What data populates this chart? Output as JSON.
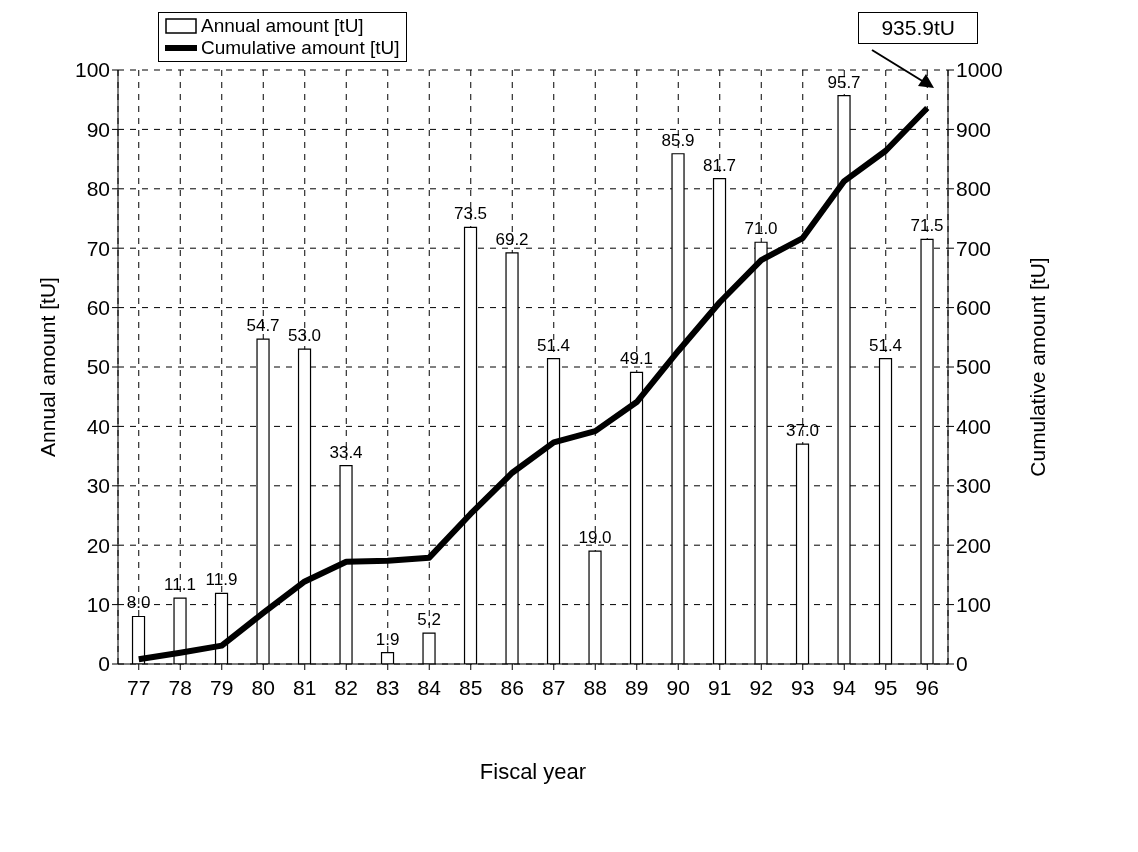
{
  "chart_data": {
    "type": "bar",
    "xlabel": "Fiscal year",
    "ylabel": "Annual amount [tU]",
    "y2label": "Cumulative amount [tU]",
    "categories": [
      "77",
      "78",
      "79",
      "80",
      "81",
      "82",
      "83",
      "84",
      "85",
      "86",
      "87",
      "88",
      "89",
      "90",
      "91",
      "92",
      "93",
      "94",
      "95",
      "96"
    ],
    "series": [
      {
        "name": "Annual amount [tU]",
        "color": "#ffffff",
        "values": [
          8.0,
          11.1,
          11.9,
          54.7,
          53.0,
          33.4,
          1.9,
          5.2,
          73.5,
          69.2,
          51.4,
          19.0,
          49.1,
          85.9,
          81.7,
          71.0,
          37.0,
          95.7,
          51.4,
          71.5
        ],
        "value_labels": [
          "8.0",
          "11.1",
          "11.9",
          "54.7",
          "53.0",
          "33.4",
          "1.9",
          "5.2",
          "73.5",
          "69.2",
          "51.4",
          "19.0",
          "49.1",
          "85.9",
          "81.7",
          "71.0",
          "37.0",
          "95.7",
          "51.4",
          "71.5"
        ]
      },
      {
        "name": "Cumulative amount [tU]",
        "type": "line",
        "axis": "y2",
        "color": "#000000",
        "values": [
          8,
          19,
          31,
          86,
          139,
          172,
          174,
          179,
          253,
          322,
          373,
          392,
          441,
          527,
          609,
          680,
          717,
          813,
          864,
          936
        ]
      }
    ],
    "ylim": [
      0,
      100
    ],
    "yticks": [
      0,
      10,
      20,
      30,
      40,
      50,
      60,
      70,
      80,
      90,
      100
    ],
    "y2lim": [
      0,
      1000
    ],
    "y2ticks": [
      0,
      100,
      200,
      300,
      400,
      500,
      600,
      700,
      800,
      900,
      1000
    ],
    "annotations": [
      "935.9tU"
    ],
    "grid": true,
    "legend": "top left",
    "marker": "none",
    "line_style": "solid"
  }
}
